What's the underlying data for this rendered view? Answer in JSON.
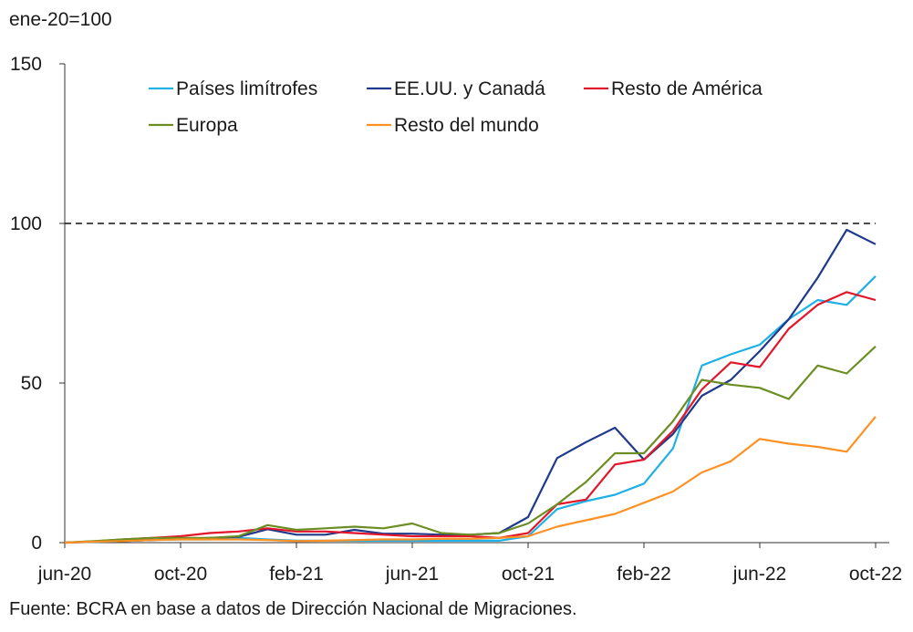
{
  "chart_data": {
    "type": "line",
    "unit_label": "ene-20=100",
    "source": "Fuente: BCRA en base a datos de Dirección Nacional de Migraciones.",
    "x": [
      "jun-20",
      "jul-20",
      "ago-20",
      "sep-20",
      "oct-20",
      "nov-20",
      "dic-20",
      "ene-21",
      "feb-21",
      "mar-21",
      "abr-21",
      "may-21",
      "jun-21",
      "jul-21",
      "ago-21",
      "sep-21",
      "oct-21",
      "nov-21",
      "dic-21",
      "ene-22",
      "feb-22",
      "mar-22",
      "abr-22",
      "may-22",
      "jun-22",
      "jul-22",
      "ago-22",
      "sep-22",
      "oct-22"
    ],
    "x_tick_labels": [
      "jun-20",
      "oct-20",
      "feb-21",
      "jun-21",
      "oct-21",
      "feb-22",
      "jun-22",
      "oct-22"
    ],
    "ylim": [
      0,
      150
    ],
    "y_ticks": [
      0,
      50,
      100,
      150
    ],
    "reference_line": 100,
    "legend_position": "top",
    "series": [
      {
        "name": "Países limítrofes",
        "color": "#1fb0e6",
        "values": [
          0,
          0.2,
          0.5,
          0.8,
          1.0,
          1.0,
          1.5,
          1.0,
          0.6,
          0.6,
          0.6,
          0.6,
          0.6,
          0.6,
          0.6,
          0.6,
          2,
          10.5,
          13,
          15,
          18.5,
          29.5,
          55.5,
          59,
          62,
          70,
          76,
          74.5,
          83.5
        ]
      },
      {
        "name": "EE.UU. y Canadá",
        "color": "#1f3a8c",
        "values": [
          0,
          0.3,
          0.5,
          0.8,
          1.2,
          1.5,
          1.8,
          4.2,
          2.5,
          2.5,
          4.0,
          2.8,
          2.8,
          2.5,
          2.5,
          3.0,
          8,
          26.5,
          31.5,
          36,
          26,
          34,
          46,
          51,
          60,
          70,
          83,
          98,
          93.5
        ]
      },
      {
        "name": "Resto de América",
        "color": "#e3152b",
        "values": [
          0,
          0.4,
          1.0,
          1.5,
          2.0,
          3.0,
          3.5,
          4.5,
          3.5,
          3.5,
          3.0,
          2.5,
          2.0,
          2.0,
          2.0,
          1.5,
          3,
          12,
          13.5,
          24.5,
          26,
          35,
          48,
          56.5,
          55,
          67,
          74.5,
          78.5,
          76
        ]
      },
      {
        "name": "Europa",
        "color": "#6b8e23",
        "values": [
          0,
          0.5,
          1.0,
          1.5,
          1.5,
          1.5,
          2.0,
          5.5,
          4.0,
          4.5,
          5.0,
          4.5,
          6.0,
          3.0,
          2.5,
          3.0,
          6,
          12,
          19,
          28,
          28,
          38,
          51,
          49.5,
          48.5,
          45,
          55.5,
          53,
          61.5
        ]
      },
      {
        "name": "Resto del mundo",
        "color": "#ff9022",
        "values": [
          0,
          0.3,
          0.5,
          0.8,
          1.0,
          1.0,
          1.0,
          0.8,
          0.5,
          0.6,
          0.8,
          1.0,
          1.0,
          1.2,
          1.2,
          1.5,
          2,
          5,
          7,
          9,
          12.5,
          16,
          22,
          25.5,
          32.5,
          31,
          30,
          28.5,
          39.5
        ]
      }
    ]
  }
}
